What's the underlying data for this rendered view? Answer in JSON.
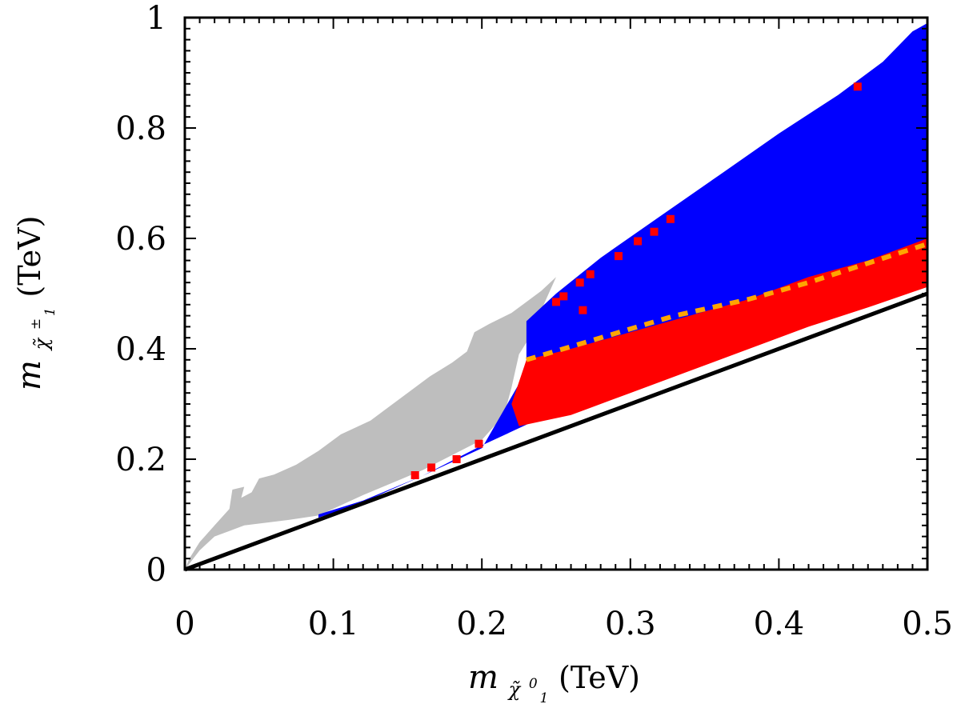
{
  "chart_data": {
    "type": "scatter",
    "title": "",
    "xlabel": {
      "base": "m",
      "sub_base": "χ̃",
      "sub_super": "0",
      "sub_sub": "1",
      "unit": "(TeV)"
    },
    "ylabel": {
      "base": "m",
      "sub_base": "χ̃",
      "sub_super": "±",
      "sub_sub": "1",
      "unit": "(TeV)"
    },
    "xlim": [
      0,
      0.5
    ],
    "ylim": [
      0,
      1
    ],
    "x_ticks": [
      0,
      0.1,
      0.2,
      0.3,
      0.4,
      0.5
    ],
    "x_tick_labels": [
      "0",
      "0.1",
      "0.2",
      "0.3",
      "0.4",
      "0.5"
    ],
    "y_ticks": [
      0,
      0.2,
      0.4,
      0.6,
      0.8,
      1
    ],
    "y_tick_labels": [
      "0",
      "0.2",
      "0.4",
      "0.6",
      "0.8",
      "1"
    ],
    "x_minor_step": 0.01,
    "y_minor_step": 0.02,
    "grid": false,
    "legend": "none",
    "colors": {
      "gray": "#bebebe",
      "blue": "#0000ff",
      "orange": "#ffa500",
      "red": "#ff0000",
      "line": "#000000",
      "axes": "#000000"
    },
    "reference_line": {
      "name": "m_chargino = m_neutralino",
      "points": [
        [
          0,
          0
        ],
        [
          0.5,
          0.5
        ]
      ]
    },
    "series": [
      {
        "name": "gray",
        "type": "region",
        "polygon": [
          [
            0.0,
            0.0
          ],
          [
            0.003,
            0.02
          ],
          [
            0.01,
            0.05
          ],
          [
            0.02,
            0.08
          ],
          [
            0.03,
            0.11
          ],
          [
            0.032,
            0.145
          ],
          [
            0.04,
            0.15
          ],
          [
            0.038,
            0.13
          ],
          [
            0.045,
            0.14
          ],
          [
            0.05,
            0.165
          ],
          [
            0.06,
            0.172
          ],
          [
            0.075,
            0.19
          ],
          [
            0.09,
            0.215
          ],
          [
            0.105,
            0.245
          ],
          [
            0.125,
            0.27
          ],
          [
            0.145,
            0.31
          ],
          [
            0.165,
            0.35
          ],
          [
            0.18,
            0.375
          ],
          [
            0.19,
            0.395
          ],
          [
            0.195,
            0.43
          ],
          [
            0.205,
            0.445
          ],
          [
            0.22,
            0.465
          ],
          [
            0.23,
            0.485
          ],
          [
            0.24,
            0.505
          ],
          [
            0.25,
            0.53
          ],
          [
            0.24,
            0.47
          ],
          [
            0.232,
            0.42
          ],
          [
            0.225,
            0.39
          ],
          [
            0.22,
            0.33
          ],
          [
            0.215,
            0.28
          ],
          [
            0.2,
            0.235
          ],
          [
            0.16,
            0.18
          ],
          [
            0.12,
            0.135
          ],
          [
            0.09,
            0.098
          ],
          [
            0.07,
            0.09
          ],
          [
            0.04,
            0.08
          ],
          [
            0.03,
            0.07
          ],
          [
            0.02,
            0.06
          ],
          [
            0.01,
            0.035
          ]
        ]
      },
      {
        "name": "blue",
        "type": "region",
        "polygon": [
          [
            0.09,
            0.1
          ],
          [
            0.12,
            0.125
          ],
          [
            0.16,
            0.17
          ],
          [
            0.2,
            0.22
          ],
          [
            0.23,
            0.36
          ],
          [
            0.23,
            0.45
          ],
          [
            0.25,
            0.5
          ],
          [
            0.28,
            0.565
          ],
          [
            0.32,
            0.64
          ],
          [
            0.36,
            0.715
          ],
          [
            0.4,
            0.79
          ],
          [
            0.44,
            0.86
          ],
          [
            0.47,
            0.92
          ],
          [
            0.49,
            0.975
          ],
          [
            0.5,
            0.99
          ],
          [
            0.5,
            0.52
          ],
          [
            0.46,
            0.5
          ],
          [
            0.42,
            0.47
          ],
          [
            0.38,
            0.43
          ],
          [
            0.33,
            0.38
          ],
          [
            0.28,
            0.33
          ],
          [
            0.24,
            0.275
          ],
          [
            0.2,
            0.225
          ],
          [
            0.16,
            0.17
          ],
          [
            0.12,
            0.122
          ],
          [
            0.09,
            0.094
          ]
        ]
      },
      {
        "name": "red",
        "type": "region",
        "polygon": [
          [
            0.225,
            0.26
          ],
          [
            0.22,
            0.3
          ],
          [
            0.23,
            0.38
          ],
          [
            0.26,
            0.4
          ],
          [
            0.3,
            0.43
          ],
          [
            0.34,
            0.46
          ],
          [
            0.38,
            0.49
          ],
          [
            0.42,
            0.53
          ],
          [
            0.46,
            0.56
          ],
          [
            0.5,
            0.6
          ],
          [
            0.5,
            0.512
          ],
          [
            0.46,
            0.475
          ],
          [
            0.42,
            0.44
          ],
          [
            0.38,
            0.4
          ],
          [
            0.34,
            0.36
          ],
          [
            0.3,
            0.32
          ],
          [
            0.26,
            0.28
          ]
        ]
      },
      {
        "name": "orange_boundary",
        "type": "polyline",
        "points": [
          [
            0.23,
            0.38
          ],
          [
            0.28,
            0.42
          ],
          [
            0.33,
            0.46
          ],
          [
            0.38,
            0.49
          ],
          [
            0.42,
            0.52
          ],
          [
            0.46,
            0.555
          ],
          [
            0.5,
            0.59
          ]
        ]
      },
      {
        "name": "red_points",
        "type": "scatter",
        "points": [
          [
            0.453,
            0.875
          ],
          [
            0.327,
            0.635
          ],
          [
            0.316,
            0.612
          ],
          [
            0.305,
            0.595
          ],
          [
            0.292,
            0.568
          ],
          [
            0.273,
            0.535
          ],
          [
            0.266,
            0.52
          ],
          [
            0.255,
            0.495
          ],
          [
            0.25,
            0.485
          ],
          [
            0.155,
            0.171
          ],
          [
            0.166,
            0.185
          ],
          [
            0.183,
            0.2
          ],
          [
            0.198,
            0.228
          ],
          [
            0.268,
            0.47
          ]
        ]
      }
    ]
  }
}
